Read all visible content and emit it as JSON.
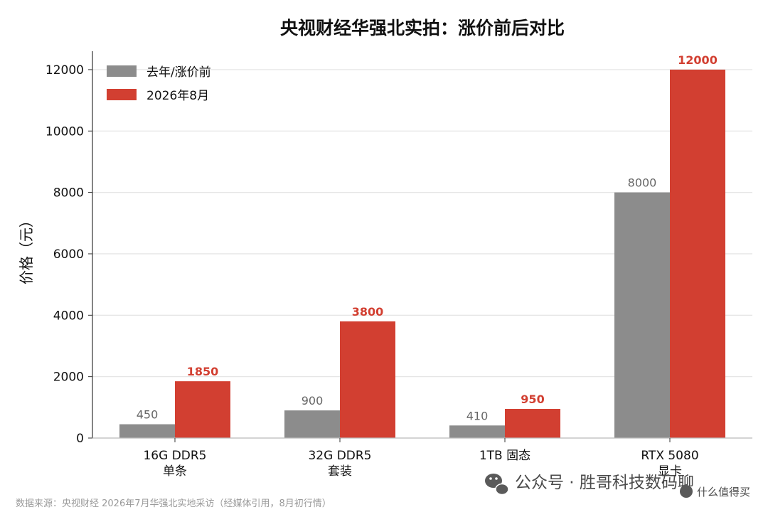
{
  "chart_data": {
    "type": "bar",
    "title": "央视财经华强北实拍：涨价前后对比",
    "xlabel": "",
    "ylabel": "价格（元）",
    "ylim": [
      0,
      12600
    ],
    "yticks": [
      0,
      2000,
      4000,
      6000,
      8000,
      10000,
      12000
    ],
    "grid": "horizontal",
    "legend_position": "top-left",
    "categories": [
      [
        "16G DDR5",
        "单条"
      ],
      [
        "32G DDR5",
        "套装"
      ],
      [
        "1TB 固态"
      ],
      [
        "RTX 5080",
        "显卡"
      ]
    ],
    "series": [
      {
        "name": "去年/涨价前",
        "values": [
          450,
          900,
          410,
          8000
        ],
        "color": "#8c8c8c",
        "label_color": "#666666"
      },
      {
        "name": "2026年8月",
        "values": [
          1850,
          3800,
          950,
          12000
        ],
        "color": "#d23f31",
        "label_color": "#d23f31"
      }
    ],
    "source_note": "数据来源：央视财经 2026年7月华强北实地采访（经媒体引用，8月初行情）"
  },
  "watermarks": {
    "wechat": "公众号 · 胜哥科技数码聊",
    "site": "什么值得买"
  }
}
